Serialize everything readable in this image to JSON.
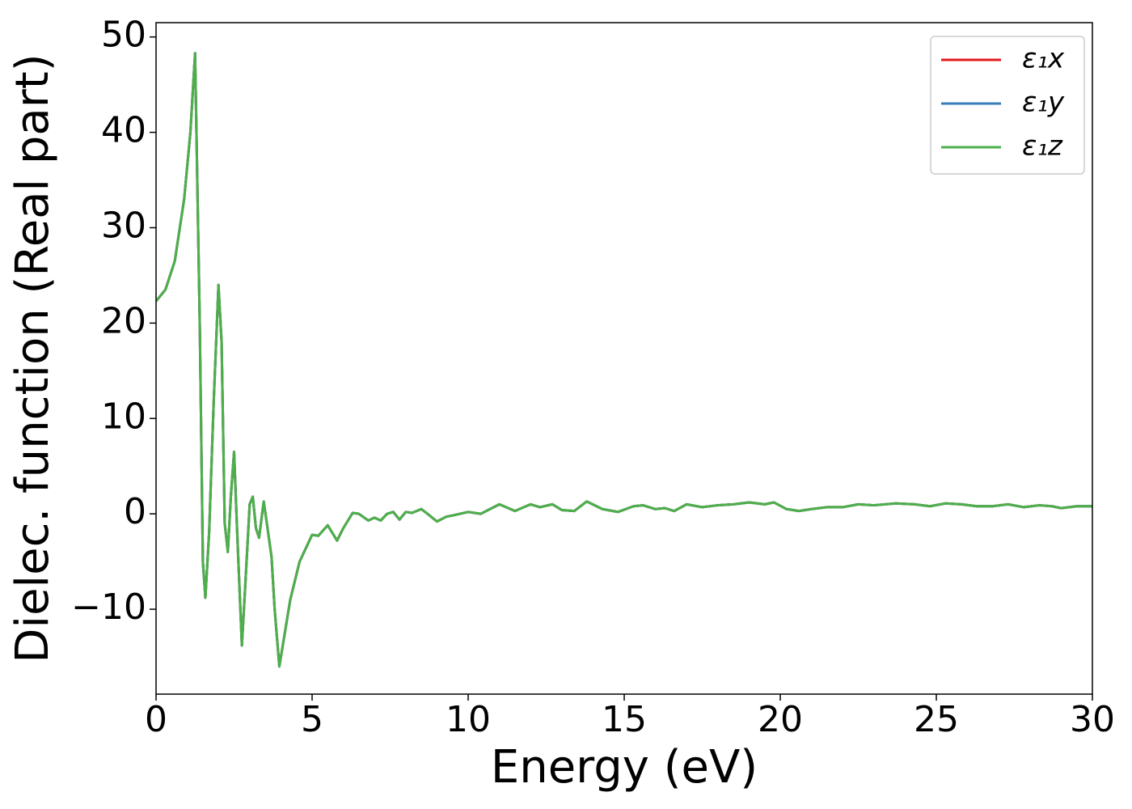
{
  "chart_data": {
    "type": "line",
    "title_none": null,
    "xlabel": "Energy (eV)",
    "ylabel": "Dielec. function (Real part)",
    "x": [
      0,
      0.3,
      0.6,
      0.9,
      1.1,
      1.25,
      1.4,
      1.5,
      1.58,
      1.7,
      1.85,
      2.0,
      2.1,
      2.2,
      2.3,
      2.4,
      2.5,
      2.6,
      2.75,
      2.85,
      3.0,
      3.1,
      3.2,
      3.3,
      3.45,
      3.55,
      3.7,
      3.8,
      3.95,
      4.05,
      4.3,
      4.6,
      5.0,
      5.2,
      5.5,
      5.8,
      6.0,
      6.3,
      6.5,
      6.8,
      7.0,
      7.2,
      7.4,
      7.6,
      7.8,
      8.0,
      8.2,
      8.5,
      8.7,
      9.0,
      9.3,
      9.6,
      10.0,
      10.4,
      11.0,
      11.5,
      12.0,
      12.3,
      12.7,
      13.0,
      13.4,
      13.8,
      14.3,
      14.8,
      15.3,
      15.6,
      16.0,
      16.3,
      16.6,
      17.0,
      17.5,
      18.0,
      18.5,
      19.0,
      19.5,
      19.8,
      20.2,
      20.6,
      21.0,
      21.5,
      22.0,
      22.5,
      23.0,
      23.7,
      24.3,
      24.8,
      25.3,
      25.8,
      26.3,
      26.8,
      27.3,
      27.8,
      28.3,
      28.7,
      29.0,
      29.5,
      30.0
    ],
    "series": [
      {
        "name": "ε₁x",
        "color": "#e41a1c",
        "values": [
          22.3,
          23.5,
          26.5,
          33,
          40,
          48.3,
          20,
          -5,
          -8.8,
          -2,
          12,
          24,
          18,
          -1,
          -4,
          2,
          6.5,
          -2,
          -13.8,
          -8,
          1,
          1.8,
          -1.5,
          -2.5,
          1.3,
          -1,
          -4.5,
          -10,
          -16,
          -14,
          -9,
          -5,
          -2.2,
          -2.3,
          -1.2,
          -2.8,
          -1.5,
          0.1,
          0,
          -0.7,
          -0.4,
          -0.7,
          0,
          0.2,
          -0.6,
          0.2,
          0.1,
          0.5,
          0,
          -0.8,
          -0.3,
          -0.1,
          0.2,
          0,
          1,
          0.3,
          1,
          0.7,
          1,
          0.4,
          0.3,
          1.3,
          0.5,
          0.2,
          0.8,
          0.9,
          0.5,
          0.6,
          0.3,
          1,
          0.7,
          0.9,
          1,
          1.2,
          1,
          1.2,
          0.5,
          0.3,
          0.5,
          0.7,
          0.7,
          1,
          0.9,
          1.1,
          1,
          0.8,
          1.1,
          1,
          0.8,
          0.8,
          1,
          0.7,
          0.9,
          0.8,
          0.6,
          0.8,
          0.8
        ]
      },
      {
        "name": "ε₁y",
        "color": "#377eb8",
        "values": [
          22.3,
          23.5,
          26.5,
          33,
          40,
          48.3,
          20,
          -5,
          -8.8,
          -2,
          12,
          24,
          18,
          -1,
          -4,
          2,
          6.5,
          -2,
          -13.8,
          -8,
          1,
          1.8,
          -1.5,
          -2.5,
          1.3,
          -1,
          -4.5,
          -10,
          -16,
          -14,
          -9,
          -5,
          -2.2,
          -2.3,
          -1.2,
          -2.8,
          -1.5,
          0.1,
          0,
          -0.7,
          -0.4,
          -0.7,
          0,
          0.2,
          -0.6,
          0.2,
          0.1,
          0.5,
          0,
          -0.8,
          -0.3,
          -0.1,
          0.2,
          0,
          1,
          0.3,
          1,
          0.7,
          1,
          0.4,
          0.3,
          1.3,
          0.5,
          0.2,
          0.8,
          0.9,
          0.5,
          0.6,
          0.3,
          1,
          0.7,
          0.9,
          1,
          1.2,
          1,
          1.2,
          0.5,
          0.3,
          0.5,
          0.7,
          0.7,
          1,
          0.9,
          1.1,
          1,
          0.8,
          1.1,
          1,
          0.8,
          0.8,
          1,
          0.7,
          0.9,
          0.8,
          0.6,
          0.8,
          0.8
        ]
      },
      {
        "name": "ε₁z",
        "color": "#4daf4a",
        "values": [
          22.3,
          23.5,
          26.5,
          33,
          40,
          48.3,
          20,
          -5,
          -8.8,
          -2,
          12,
          24,
          18,
          -1,
          -4,
          2,
          6.5,
          -2,
          -13.8,
          -8,
          1,
          1.8,
          -1.5,
          -2.5,
          1.3,
          -1,
          -4.5,
          -10,
          -16,
          -14,
          -9,
          -5,
          -2.2,
          -2.3,
          -1.2,
          -2.8,
          -1.5,
          0.1,
          0,
          -0.7,
          -0.4,
          -0.7,
          0,
          0.2,
          -0.6,
          0.2,
          0.1,
          0.5,
          0,
          -0.8,
          -0.3,
          -0.1,
          0.2,
          0,
          1,
          0.3,
          1,
          0.7,
          1,
          0.4,
          0.3,
          1.3,
          0.5,
          0.2,
          0.8,
          0.9,
          0.5,
          0.6,
          0.3,
          1,
          0.7,
          0.9,
          1,
          1.2,
          1,
          1.2,
          0.5,
          0.3,
          0.5,
          0.7,
          0.7,
          1,
          0.9,
          1.1,
          1,
          0.8,
          1.1,
          1,
          0.8,
          0.8,
          1,
          0.7,
          0.9,
          0.8,
          0.6,
          0.8,
          0.8
        ]
      }
    ],
    "xlim": [
      0,
      30
    ],
    "xticks": [
      0,
      5,
      10,
      15,
      20,
      25,
      30
    ],
    "ylim": [
      -18.9,
      51.5
    ],
    "yticks": [
      {
        "value": -10,
        "label": "−10"
      },
      0,
      10,
      20,
      30,
      40,
      50
    ],
    "grid": false,
    "legend": "upper right"
  }
}
